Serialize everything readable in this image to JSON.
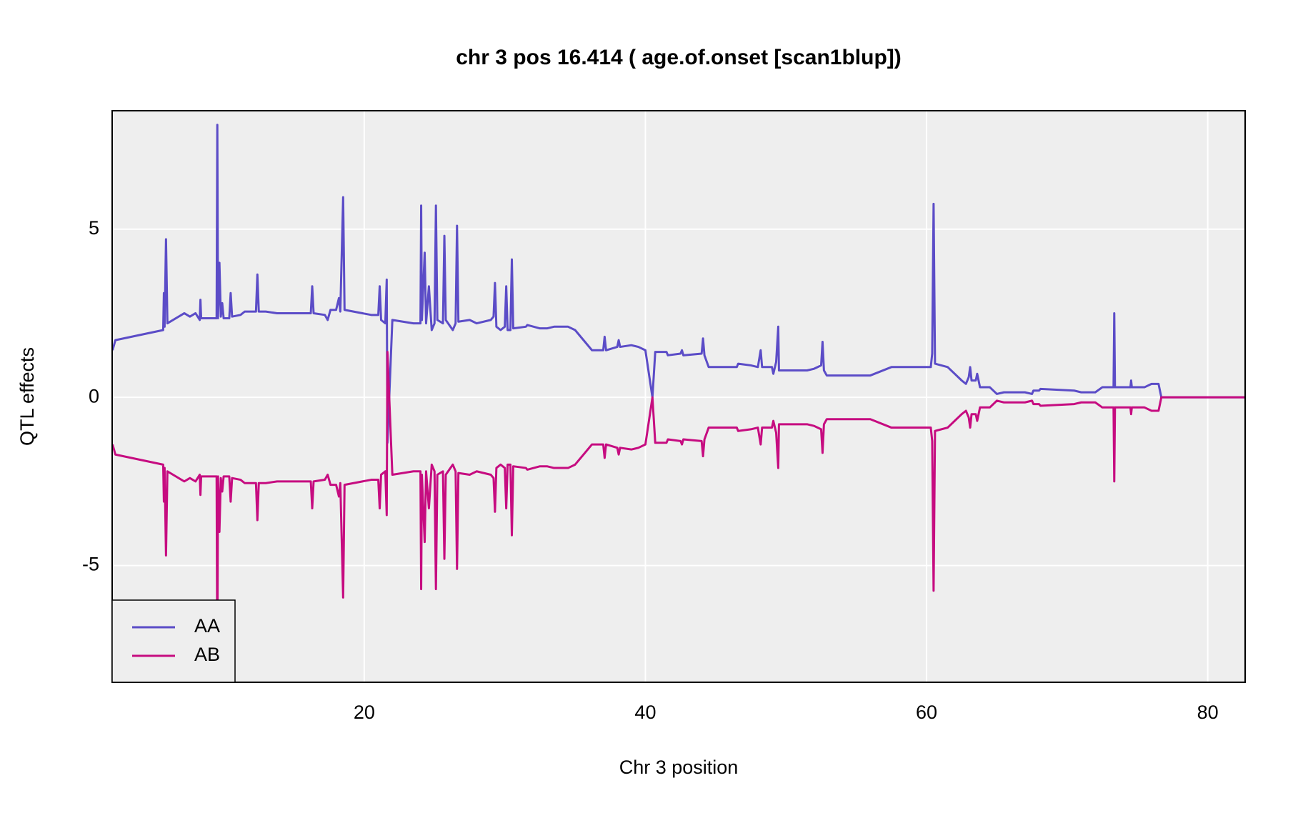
{
  "chart_data": {
    "type": "line",
    "title": "chr 3 pos 16.414 ( age.of.onset  [scan1blup])",
    "xlabel": "Chr 3 position",
    "ylabel": "QTL effects",
    "x": [
      2.1,
      2.3,
      5.7,
      5.75,
      5.8,
      5.9,
      6.0,
      7.2,
      7.6,
      8.0,
      8.3,
      8.35,
      8.4,
      9.5,
      9.55,
      9.6,
      9.7,
      9.8,
      9.9,
      10.0,
      10.4,
      10.5,
      10.6,
      11.2,
      11.5,
      12.3,
      12.4,
      12.5,
      13.0,
      13.8,
      16.2,
      16.3,
      16.4,
      17.2,
      17.4,
      17.6,
      18.0,
      18.2,
      18.3,
      18.5,
      18.6,
      20.5,
      21.0,
      21.1,
      21.2,
      21.5,
      21.6,
      21.65,
      22.0,
      23.5,
      24.0,
      24.05,
      24.1,
      24.3,
      24.4,
      24.6,
      24.8,
      25.0,
      25.1,
      25.2,
      25.6,
      25.7,
      25.8,
      26.3,
      26.5,
      26.6,
      26.7,
      27.5,
      28.0,
      29.0,
      29.2,
      29.3,
      29.4,
      29.7,
      30.0,
      30.1,
      30.2,
      30.4,
      30.5,
      30.6,
      31.5,
      31.6,
      32.5,
      33.0,
      33.5,
      34.5,
      35.0,
      36.2,
      37.0,
      37.1,
      37.2,
      38.0,
      38.1,
      38.2,
      39.0,
      39.5,
      40.0,
      40.5,
      40.7,
      41.5,
      41.6,
      42.5,
      42.6,
      42.7,
      44.0,
      44.1,
      44.2,
      44.5,
      46.5,
      46.6,
      47.5,
      48.0,
      48.2,
      48.3,
      49.0,
      49.1,
      49.3,
      49.45,
      49.5,
      50.0,
      51.5,
      52.0,
      52.5,
      52.6,
      52.7,
      52.9,
      55.5,
      56.0,
      57.5,
      58.5,
      60.3,
      60.4,
      60.5,
      60.6,
      61.5,
      62.0,
      62.5,
      62.8,
      63.0,
      63.1,
      63.2,
      63.5,
      63.6,
      63.8,
      64.5,
      65.0,
      65.5,
      67.0,
      67.5,
      67.6,
      68.0,
      68.1,
      70.5,
      71.0,
      72.0,
      72.5,
      73.3,
      73.35,
      73.4,
      74.5,
      74.55,
      74.6,
      75.5,
      76.0,
      76.5,
      76.7,
      82.66
    ],
    "series": [
      {
        "name": "AA",
        "color": "#5b4cc7",
        "values": [
          1.4,
          1.7,
          2.0,
          3.1,
          2.1,
          4.7,
          2.2,
          2.5,
          2.4,
          2.5,
          2.3,
          2.9,
          2.35,
          2.35,
          8.1,
          2.35,
          4.0,
          2.4,
          2.8,
          2.35,
          2.35,
          3.1,
          2.4,
          2.45,
          2.55,
          2.55,
          3.65,
          2.55,
          2.55,
          2.5,
          2.5,
          3.3,
          2.5,
          2.45,
          2.3,
          2.6,
          2.6,
          2.95,
          2.55,
          5.95,
          2.6,
          2.45,
          2.45,
          3.3,
          2.3,
          2.2,
          3.5,
          -1.35,
          2.3,
          2.2,
          2.2,
          5.7,
          2.3,
          4.3,
          2.2,
          3.3,
          2.0,
          2.2,
          5.7,
          2.3,
          2.2,
          4.8,
          2.3,
          2.0,
          2.2,
          5.1,
          2.25,
          2.3,
          2.2,
          2.3,
          2.4,
          3.4,
          2.1,
          2.0,
          2.1,
          3.3,
          2.0,
          2.0,
          4.1,
          2.05,
          2.1,
          2.15,
          2.05,
          2.05,
          2.1,
          2.1,
          2.0,
          1.4,
          1.4,
          1.8,
          1.4,
          1.5,
          1.7,
          1.5,
          1.55,
          1.5,
          1.4,
          0.0,
          1.35,
          1.35,
          1.25,
          1.3,
          1.4,
          1.25,
          1.3,
          1.75,
          1.25,
          0.9,
          0.9,
          1.0,
          0.95,
          0.9,
          1.4,
          0.9,
          0.9,
          0.7,
          1.05,
          2.1,
          0.8,
          0.8,
          0.8,
          0.85,
          0.95,
          1.65,
          0.8,
          0.65,
          0.65,
          0.65,
          0.9,
          0.9,
          0.9,
          1.3,
          5.75,
          1.0,
          0.9,
          0.7,
          0.5,
          0.4,
          0.6,
          0.9,
          0.5,
          0.5,
          0.7,
          0.3,
          0.3,
          0.1,
          0.15,
          0.15,
          0.1,
          0.2,
          0.2,
          0.25,
          0.2,
          0.15,
          0.15,
          0.3,
          0.3,
          2.5,
          0.3,
          0.3,
          0.5,
          0.3,
          0.3,
          0.4,
          0.4,
          0.0,
          0.0
        ]
      },
      {
        "name": "AB",
        "color": "#c60c80",
        "values": [
          -1.4,
          -1.7,
          -2.0,
          -3.1,
          -2.1,
          -4.7,
          -2.2,
          -2.5,
          -2.4,
          -2.5,
          -2.3,
          -2.9,
          -2.35,
          -2.35,
          -8.1,
          -2.35,
          -4.0,
          -2.4,
          -2.8,
          -2.35,
          -2.35,
          -3.1,
          -2.4,
          -2.45,
          -2.55,
          -2.55,
          -3.65,
          -2.55,
          -2.55,
          -2.5,
          -2.5,
          -3.3,
          -2.5,
          -2.45,
          -2.3,
          -2.6,
          -2.6,
          -2.95,
          -2.55,
          -5.95,
          -2.6,
          -2.45,
          -2.45,
          -3.3,
          -2.3,
          -2.2,
          -3.5,
          1.35,
          -2.3,
          -2.2,
          -2.2,
          -5.7,
          -2.3,
          -4.3,
          -2.2,
          -3.3,
          -2.0,
          -2.2,
          -5.7,
          -2.3,
          -2.2,
          -4.8,
          -2.3,
          -2.0,
          -2.2,
          -5.1,
          -2.25,
          -2.3,
          -2.2,
          -2.3,
          -2.4,
          -3.4,
          -2.1,
          -2.0,
          -2.1,
          -3.3,
          -2.0,
          -2.0,
          -4.1,
          -2.05,
          -2.1,
          -2.15,
          -2.05,
          -2.05,
          -2.1,
          -2.1,
          -2.0,
          -1.4,
          -1.4,
          -1.8,
          -1.4,
          -1.5,
          -1.7,
          -1.5,
          -1.55,
          -1.5,
          -1.4,
          0.0,
          -1.35,
          -1.35,
          -1.25,
          -1.3,
          -1.4,
          -1.25,
          -1.3,
          -1.75,
          -1.25,
          -0.9,
          -0.9,
          -1.0,
          -0.95,
          -0.9,
          -1.4,
          -0.9,
          -0.9,
          -0.7,
          -1.05,
          -2.1,
          -0.8,
          -0.8,
          -0.8,
          -0.85,
          -0.95,
          -1.65,
          -0.8,
          -0.65,
          -0.65,
          -0.65,
          -0.9,
          -0.9,
          -0.9,
          -1.3,
          -5.75,
          -1.0,
          -0.9,
          -0.7,
          -0.5,
          -0.4,
          -0.6,
          -0.9,
          -0.5,
          -0.5,
          -0.7,
          -0.3,
          -0.3,
          -0.1,
          -0.15,
          -0.15,
          -0.1,
          -0.2,
          -0.2,
          -0.25,
          -0.2,
          -0.15,
          -0.15,
          -0.3,
          -0.3,
          -2.5,
          -0.3,
          -0.3,
          -0.5,
          -0.3,
          -0.3,
          -0.4,
          -0.4,
          0.0,
          0.0
        ]
      }
    ],
    "xlim": [
      2.07,
      82.66
    ],
    "ylim": [
      -8.47,
      8.52
    ],
    "xticks": [
      20,
      40,
      60,
      80
    ],
    "yticks": [
      -5,
      0,
      5
    ],
    "grid": true,
    "legend": "bottom-left"
  }
}
